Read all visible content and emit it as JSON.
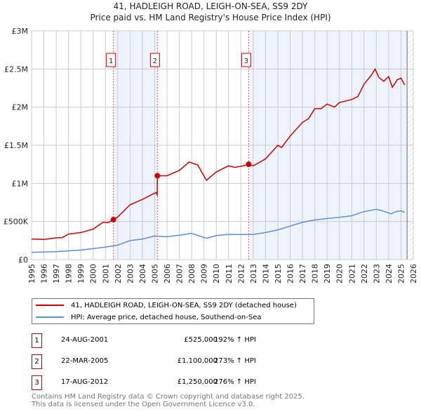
{
  "chart_data": {
    "type": "line",
    "title": "41, HADLEIGH ROAD, LEIGH-ON-SEA, SS9 2DY",
    "subtitle": "Price paid vs. HM Land Registry's House Price Index (HPI)",
    "xlim": [
      1995,
      2026
    ],
    "ylim": [
      0,
      3000000
    ],
    "y_ticks": [
      {
        "v": 0,
        "label": "£0"
      },
      {
        "v": 500000,
        "label": "£500K"
      },
      {
        "v": 1000000,
        "label": "£1M"
      },
      {
        "v": 1500000,
        "label": "£1.5M"
      },
      {
        "v": 2000000,
        "label": "£2M"
      },
      {
        "v": 2500000,
        "label": "£2.5M"
      },
      {
        "v": 3000000,
        "label": "£3M"
      }
    ],
    "x_ticks": [
      "1995",
      "1996",
      "1997",
      "1998",
      "1999",
      "2000",
      "2001",
      "2002",
      "2003",
      "2004",
      "2005",
      "2006",
      "2007",
      "2008",
      "2009",
      "2010",
      "2011",
      "2012",
      "2013",
      "2014",
      "2015",
      "2016",
      "2017",
      "2018",
      "2019",
      "2020",
      "2021",
      "2022",
      "2023",
      "2024",
      "2025",
      "2026"
    ],
    "grid": true,
    "shaded": [
      [
        2001.65,
        2005.22
      ],
      [
        2012.63,
        2025.5
      ]
    ],
    "hatched_from": 2025.5,
    "series": [
      {
        "name": "41, HADLEIGH ROAD, LEIGH-ON-SEA, SS9 2DY (detached house)",
        "color": "#cc0000",
        "x": [
          1995,
          1996,
          1997,
          1997.5,
          1998,
          1999,
          2000,
          2000.8,
          2001.2,
          2001.65,
          2002,
          2003,
          2004,
          2005.1,
          2005.2,
          2005.22,
          2006,
          2007,
          2007.8,
          2008.5,
          2009.2,
          2010,
          2011,
          2011.5,
          2012.2,
          2012.63,
          2013,
          2014,
          2015,
          2015.3,
          2016,
          2017,
          2017.5,
          2018,
          2018.5,
          2019,
          2019.6,
          2020,
          2021,
          2021.5,
          2022,
          2022.6,
          2022.9,
          2023.2,
          2023.6,
          2024,
          2024.3,
          2024.7,
          2025,
          2025.3
        ],
        "y": [
          270000,
          265000,
          285000,
          290000,
          335000,
          355000,
          400000,
          490000,
          485000,
          525000,
          560000,
          720000,
          790000,
          880000,
          850000,
          1100000,
          1100000,
          1170000,
          1280000,
          1240000,
          1040000,
          1150000,
          1230000,
          1210000,
          1230000,
          1250000,
          1230000,
          1320000,
          1500000,
          1470000,
          1620000,
          1800000,
          1850000,
          1980000,
          1980000,
          2040000,
          2000000,
          2060000,
          2100000,
          2140000,
          2300000,
          2420000,
          2500000,
          2390000,
          2340000,
          2400000,
          2260000,
          2360000,
          2380000,
          2290000
        ]
      },
      {
        "name": "HPI: Average price, detached house, Southend-on-Sea",
        "color": "#5b8fd6",
        "x": [
          1995,
          1997,
          1999,
          2001,
          2002,
          2003,
          2004,
          2005,
          2006,
          2007,
          2008,
          2009.2,
          2010,
          2011,
          2012,
          2013,
          2014,
          2015,
          2016,
          2017,
          2018,
          2019,
          2020,
          2021,
          2022,
          2023,
          2023.5,
          2024.2,
          2024.6,
          2025,
          2025.3
        ],
        "y": [
          95000,
          105000,
          125000,
          165000,
          190000,
          250000,
          270000,
          310000,
          300000,
          320000,
          345000,
          280000,
          315000,
          330000,
          330000,
          330000,
          355000,
          390000,
          440000,
          490000,
          520000,
          540000,
          555000,
          575000,
          630000,
          660000,
          640000,
          600000,
          630000,
          640000,
          620000
        ]
      }
    ],
    "sales": [
      {
        "n": "1",
        "x": 2001.65,
        "y": 525000,
        "date": "24-AUG-2001",
        "price": "£525,000",
        "hpi": "192% ↑ HPI"
      },
      {
        "n": "2",
        "x": 2005.22,
        "y": 1100000,
        "date": "22-MAR-2005",
        "price": "£1,100,000",
        "hpi": "273% ↑ HPI"
      },
      {
        "n": "3",
        "x": 2012.63,
        "y": 1250000,
        "date": "17-AUG-2012",
        "price": "£1,250,000",
        "hpi": "276% ↑ HPI"
      }
    ]
  },
  "footer": {
    "line1": "Contains HM Land Registry data © Crown copyright and database right 2025.",
    "line2": "This data is licensed under the Open Government Licence v3.0."
  }
}
